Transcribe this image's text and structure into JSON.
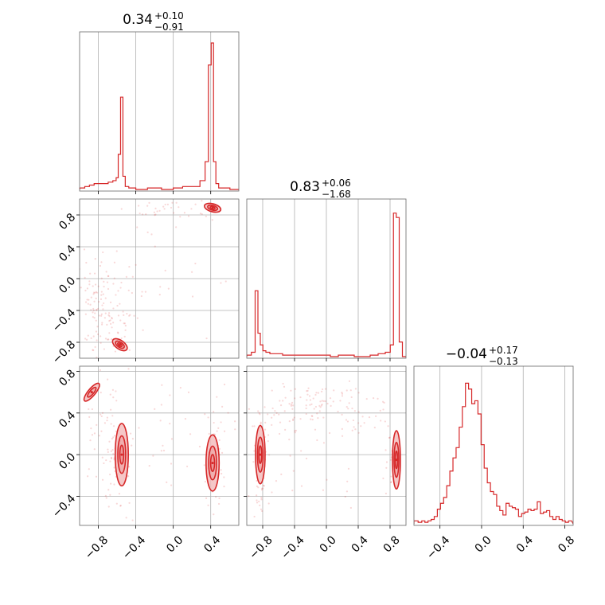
{
  "colors": {
    "series": "#d62728",
    "fill": "#f3b9b9",
    "grid": "#b0b0b0",
    "frame": "#666666"
  },
  "chart_data": [
    {
      "type": "histogram",
      "panel": "corner-param-1",
      "title": {
        "value": "0.34",
        "plus": "+0.10",
        "minus": "−0.91"
      },
      "xlim": [
        -1.0,
        0.7
      ],
      "grid": true,
      "bin_centers": [
        -0.97,
        -0.92,
        -0.87,
        -0.82,
        -0.77,
        -0.72,
        -0.67,
        -0.62,
        -0.6,
        -0.575,
        -0.55,
        -0.525,
        -0.5,
        -0.45,
        -0.35,
        -0.2,
        -0.05,
        0.05,
        0.15,
        0.25,
        0.32,
        0.36,
        0.39,
        0.42,
        0.44,
        0.47,
        0.5,
        0.56,
        0.65
      ],
      "counts": [
        1,
        2,
        3,
        4,
        4,
        4,
        5,
        6,
        8,
        24,
        63,
        9,
        2,
        1,
        0,
        1,
        0,
        1,
        2,
        2,
        6,
        19,
        85,
        100,
        19,
        4,
        1,
        1,
        0
      ],
      "max_count": 100
    },
    {
      "type": "histogram",
      "panel": "corner-param-2",
      "title": {
        "value": "0.83",
        "plus": "+0.06",
        "minus": "−1.68"
      },
      "xlim": [
        -1.0,
        1.0
      ],
      "grid": true,
      "bin_centers": [
        -0.97,
        -0.915,
        -0.875,
        -0.845,
        -0.815,
        -0.78,
        -0.74,
        -0.68,
        -0.6,
        -0.5,
        -0.4,
        -0.3,
        -0.2,
        -0.1,
        0,
        0.1,
        0.2,
        0.3,
        0.4,
        0.5,
        0.6,
        0.7,
        0.78,
        0.825,
        0.86,
        0.895,
        0.935,
        0.975
      ],
      "counts": [
        1,
        3,
        45,
        16,
        8,
        4,
        3,
        2,
        2,
        1,
        1,
        1,
        1,
        1,
        1,
        0,
        1,
        1,
        0,
        0,
        1,
        2,
        3,
        8,
        98,
        95,
        10,
        0
      ],
      "max_count": 100
    },
    {
      "type": "histogram",
      "panel": "corner-param-3",
      "title": {
        "value": "−0.04",
        "plus": "+0.17",
        "minus": "−0.13"
      },
      "xlim": [
        -0.65,
        0.88
      ],
      "grid": true,
      "xticks": [
        -0.4,
        0.0,
        0.4,
        0.8
      ],
      "xtick_labels": [
        "−0.4",
        "0.0",
        "0.4",
        "0.8"
      ],
      "bin_centers": [
        -0.63,
        -0.59,
        -0.56,
        -0.53,
        -0.5,
        -0.47,
        -0.44,
        -0.41,
        -0.38,
        -0.35,
        -0.32,
        -0.29,
        -0.26,
        -0.23,
        -0.2,
        -0.17,
        -0.14,
        -0.11,
        -0.08,
        -0.05,
        -0.02,
        0.01,
        0.04,
        0.07,
        0.1,
        0.13,
        0.16,
        0.19,
        0.22,
        0.25,
        0.28,
        0.31,
        0.34,
        0.37,
        0.4,
        0.43,
        0.46,
        0.49,
        0.52,
        0.55,
        0.58,
        0.61,
        0.64,
        0.67,
        0.7,
        0.73,
        0.76,
        0.79,
        0.82,
        0.85
      ],
      "counts": [
        2,
        1,
        2,
        1,
        2,
        3,
        5,
        10,
        14,
        18,
        26,
        36,
        45,
        52,
        66,
        80,
        96,
        92,
        82,
        84,
        75,
        54,
        38,
        28,
        22,
        20,
        12,
        9,
        6,
        14,
        12,
        11,
        10,
        5,
        7,
        8,
        10,
        9,
        10,
        15,
        7,
        8,
        9,
        5,
        3,
        5,
        3,
        2,
        1,
        2
      ],
      "max_count": 100
    },
    {
      "type": "scatter_contour",
      "panel": "corner-2-vs-1",
      "xlim": [
        -1.0,
        0.7
      ],
      "ylim": [
        -1.0,
        1.0
      ],
      "grid": true,
      "yticks": [
        -0.8,
        -0.4,
        0.0,
        0.4,
        0.8
      ],
      "ytick_labels": [
        "−0.8",
        "−0.4",
        "0.0",
        "0.4",
        "0.8"
      ],
      "clusters": [
        {
          "x": [
            -1.0,
            -0.6
          ],
          "y": [
            -0.95,
            0.25
          ],
          "n": 95
        },
        {
          "x": [
            -0.85,
            -0.35
          ],
          "y": [
            -0.95,
            -0.1
          ],
          "n": 40
        },
        {
          "x": [
            -0.4,
            0.5
          ],
          "y": [
            0.75,
            0.95
          ],
          "n": 30
        },
        {
          "x": [
            -0.8,
            0.5
          ],
          "y": [
            -0.9,
            0.9
          ],
          "n": 30
        }
      ],
      "contours": [
        {
          "cx": -0.57,
          "cy": -0.83,
          "rx": 0.09,
          "ry": 0.055,
          "rot": 35,
          "levels": [
            1.0,
            0.6,
            0.3
          ]
        },
        {
          "cx": 0.42,
          "cy": 0.89,
          "rx": 0.09,
          "ry": 0.05,
          "rot": 15,
          "levels": [
            1.0,
            0.6,
            0.3
          ]
        }
      ]
    },
    {
      "type": "scatter_contour",
      "panel": "corner-3-vs-1",
      "xlim": [
        -1.0,
        0.7
      ],
      "ylim": [
        -0.68,
        0.85
      ],
      "grid": true,
      "xticks": [
        -0.8,
        -0.4,
        0.0,
        0.4
      ],
      "xtick_labels": [
        "−0.8",
        "−0.4",
        "0.0",
        "0.4"
      ],
      "yticks": [
        -0.4,
        0.0,
        0.4,
        0.8
      ],
      "ytick_labels": [
        "−0.4",
        "0.0",
        "0.4",
        "0.8"
      ],
      "clusters": [
        {
          "x": [
            -0.95,
            -0.55
          ],
          "y": [
            -0.35,
            0.75
          ],
          "n": 35
        },
        {
          "x": [
            -0.75,
            -0.45
          ],
          "y": [
            -0.6,
            0.45
          ],
          "n": 50
        },
        {
          "x": [
            0.3,
            0.55
          ],
          "y": [
            -0.6,
            0.5
          ],
          "n": 40
        },
        {
          "x": [
            -1.0,
            0.7
          ],
          "y": [
            -0.65,
            0.8
          ],
          "n": 45
        }
      ],
      "contours": [
        {
          "cx": -0.55,
          "cy": 0.0,
          "rx": 0.07,
          "ry": 0.3,
          "rot": 0,
          "levels": [
            1.0,
            0.6,
            0.3
          ]
        },
        {
          "cx": 0.42,
          "cy": -0.08,
          "rx": 0.07,
          "ry": 0.27,
          "rot": 0,
          "levels": [
            1.0,
            0.6,
            0.3
          ]
        },
        {
          "cx": -0.87,
          "cy": 0.6,
          "rx": 0.12,
          "ry": 0.035,
          "rot": -50,
          "levels": [
            1.0,
            0.55
          ]
        }
      ]
    },
    {
      "type": "scatter_contour",
      "panel": "corner-3-vs-2",
      "xlim": [
        -1.0,
        1.0
      ],
      "ylim": [
        -0.68,
        0.85
      ],
      "grid": true,
      "xticks": [
        -0.8,
        -0.4,
        0.0,
        0.4,
        0.8
      ],
      "xtick_labels": [
        "−0.8",
        "−0.4",
        "0.0",
        "0.4",
        "0.8"
      ],
      "clusters": [
        {
          "x": [
            -0.95,
            -0.7
          ],
          "y": [
            -0.6,
            0.45
          ],
          "n": 50
        },
        {
          "x": [
            -0.8,
            0.6
          ],
          "y": [
            0.2,
            0.7
          ],
          "n": 110
        },
        {
          "x": [
            0.75,
            0.95
          ],
          "y": [
            -0.4,
            0.4
          ],
          "n": 20
        },
        {
          "x": [
            -0.95,
            0.95
          ],
          "y": [
            -0.65,
            0.8
          ],
          "n": 40
        }
      ],
      "contours": [
        {
          "cx": -0.83,
          "cy": 0.0,
          "rx": 0.06,
          "ry": 0.28,
          "rot": 0,
          "levels": [
            1.0,
            0.6,
            0.3
          ]
        },
        {
          "cx": 0.88,
          "cy": -0.05,
          "rx": 0.05,
          "ry": 0.28,
          "rot": 0,
          "levels": [
            1.0,
            0.6,
            0.3
          ]
        }
      ]
    }
  ]
}
